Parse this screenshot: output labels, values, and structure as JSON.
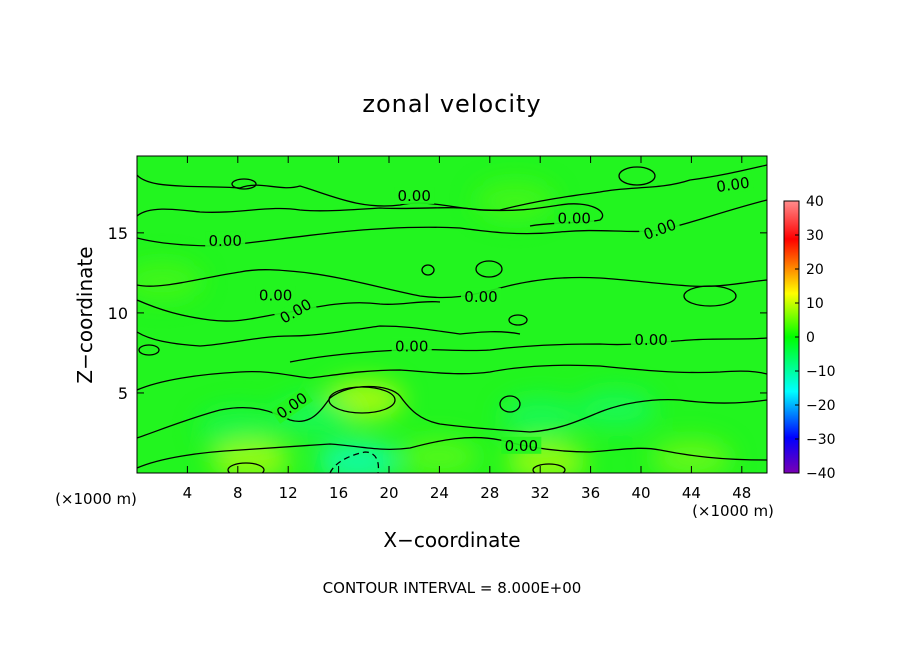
{
  "chart_data": {
    "type": "heatmap",
    "title": "zonal velocity",
    "xlabel": "X−coordinate",
    "ylabel": "Z−coordinate",
    "x_unit": "(×1000 m)",
    "x_unit_right": "(×1000 m)",
    "xlim": [
      0,
      50
    ],
    "ylim": [
      0,
      19.8
    ],
    "x_ticks": [
      4,
      8,
      12,
      16,
      20,
      24,
      28,
      32,
      36,
      40,
      44,
      48
    ],
    "y_ticks": [
      5,
      10,
      15
    ],
    "colorbar": {
      "range": [
        -40,
        40
      ],
      "ticks": [
        40,
        30,
        20,
        10,
        0,
        -10,
        -20,
        -30,
        -40
      ],
      "tick_labels": [
        "40",
        "30",
        "20",
        "10",
        "0",
        "−10",
        "−20",
        "−30",
        "−40"
      ],
      "colors": [
        "#7a00b4",
        "#0000ff",
        "#00ffff",
        "#00ff00",
        "#ffff00",
        "#ff0000",
        "#ff8c8c"
      ]
    },
    "background_value": 0,
    "features": [
      {
        "x": 18,
        "y": 4.6,
        "value": 8
      },
      {
        "x": 14,
        "y": 3.5,
        "value": -4
      },
      {
        "x": 8,
        "y": 2.8,
        "value": -3
      },
      {
        "x": 17.5,
        "y": 0.7,
        "value": -10
      },
      {
        "x": 32,
        "y": 3.5,
        "value": -4
      },
      {
        "x": 38,
        "y": 4.0,
        "value": -4
      },
      {
        "x": 9,
        "y": 0.8,
        "value": 7
      },
      {
        "x": 32.5,
        "y": 0.7,
        "value": 7
      },
      {
        "x": 24,
        "y": 1.0,
        "value": 3
      },
      {
        "x": 44,
        "y": 0.9,
        "value": 4
      },
      {
        "x": 2,
        "y": 12,
        "value": 2
      },
      {
        "x": 30,
        "y": 17,
        "value": 2
      }
    ],
    "contour_labels": [
      {
        "x": 22,
        "y": 14.6,
        "text": "0.00"
      },
      {
        "x": 17,
        "y": 11.2,
        "text": "0.00"
      },
      {
        "x": 13.5,
        "y": 2.7,
        "text": "0.00"
      },
      {
        "x": 11.3,
        "y": 4.5,
        "text": "0.00"
      },
      {
        "x": 14.6,
        "y": 9.8,
        "text": "0.00"
      },
      {
        "x": 13.8,
        "y": 9.3,
        "text": "0.00"
      },
      {
        "x": 17,
        "y": 11.6,
        "text": "0.00"
      }
    ],
    "footer": "CONTOUR INTERVAL = 8.000E+00"
  },
  "labels": {
    "contour": [
      {
        "x": 22,
        "y": 17.3,
        "text": "0.00",
        "angle": 0
      },
      {
        "x": 34.7,
        "y": 15.9,
        "text": "0.00",
        "angle": 0
      },
      {
        "x": 7,
        "y": 14.5,
        "text": "0.00",
        "angle": 0
      },
      {
        "x": 41.5,
        "y": 15.2,
        "text": "0.00",
        "angle": -20
      },
      {
        "x": 47.3,
        "y": 18.0,
        "text": "0.00",
        "angle": -8
      },
      {
        "x": 11,
        "y": 11.1,
        "text": "0.00",
        "angle": 0
      },
      {
        "x": 12.6,
        "y": 10.1,
        "text": "0.00",
        "angle": -30
      },
      {
        "x": 27.3,
        "y": 11.0,
        "text": "0.00",
        "angle": 0
      },
      {
        "x": 21.8,
        "y": 7.9,
        "text": "0.00",
        "angle": 0
      },
      {
        "x": 40.8,
        "y": 8.3,
        "text": "0.00",
        "angle": 0
      },
      {
        "x": 12.3,
        "y": 4.2,
        "text": "0.00",
        "angle": -35
      },
      {
        "x": 30.5,
        "y": 1.7,
        "text": "0.00",
        "angle": 0
      }
    ]
  }
}
